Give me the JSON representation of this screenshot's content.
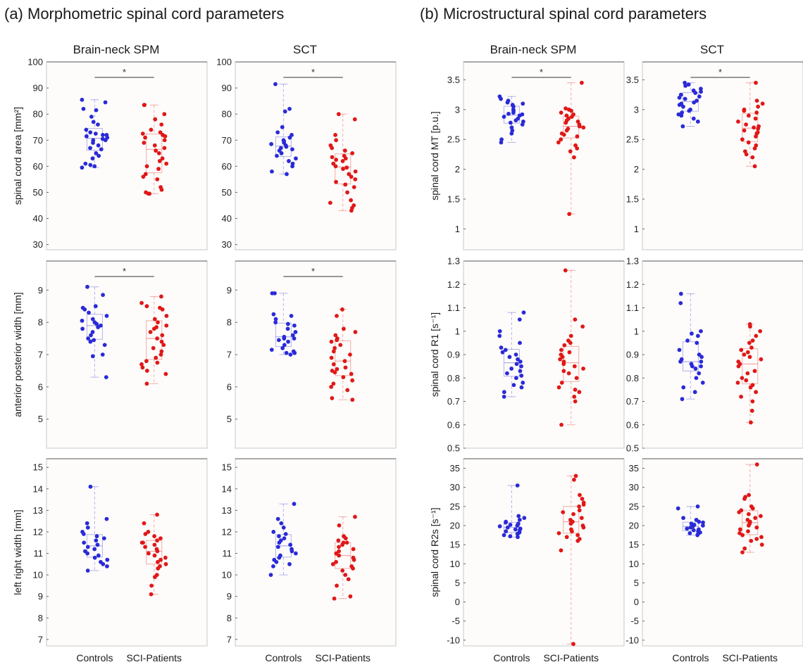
{
  "panel_a_title": "(a) Morphometric spinal cord parameters",
  "panel_b_title": "(b) Microstructural spinal cord parameters",
  "col_titles": [
    "Brain-neck SPM",
    "SCT",
    "Brain-neck SPM",
    "SCT"
  ],
  "colors": {
    "controls": "#2a2ad8",
    "patients": "#e01818"
  },
  "chart_data": [
    {
      "type": "scatter",
      "col": 0,
      "row": 0,
      "ylabel": "spinal cord area [mm²]",
      "ylim": [
        28,
        100
      ],
      "yticks": [
        30,
        40,
        50,
        60,
        70,
        80,
        90,
        100
      ],
      "yticklabels": [
        "30",
        "40",
        "50",
        "60",
        "70",
        "80",
        "90",
        "100"
      ],
      "categories": [
        "Controls",
        "SCI-Patients"
      ],
      "significance": "*",
      "series": [
        {
          "name": "Controls",
          "values": [
            85.5,
            84.5,
            82,
            81.5,
            79,
            77,
            76,
            74,
            73,
            72.5,
            72,
            72,
            71.5,
            71,
            70.5,
            70,
            70,
            69,
            68,
            67,
            66.5,
            65,
            64,
            63,
            61,
            60.5,
            60,
            59.5
          ]
        },
        {
          "name": "SCI-Patients",
          "values": [
            83.5,
            83.5,
            80,
            78,
            76,
            74,
            73,
            72.5,
            72,
            71.5,
            71,
            70,
            69,
            68,
            67,
            66,
            65,
            63,
            62,
            61,
            60,
            59,
            57,
            56,
            55,
            52,
            51,
            50,
            49.5,
            49.5
          ]
        }
      ]
    },
    {
      "type": "scatter",
      "col": 1,
      "row": 0,
      "ylabel": "",
      "ylim": [
        28,
        100
      ],
      "yticks": [
        30,
        40,
        50,
        60,
        70,
        80,
        90,
        100
      ],
      "yticklabels": [
        "30",
        "40",
        "50",
        "60",
        "70",
        "80",
        "90",
        "100"
      ],
      "categories": [
        "Controls",
        "SCI-Patients"
      ],
      "significance": "*",
      "series": [
        {
          "name": "Controls",
          "values": [
            91.5,
            82,
            81,
            75,
            73,
            72,
            71,
            70,
            69.5,
            69,
            68.5,
            68,
            67.5,
            67,
            66.5,
            66,
            65,
            64,
            63,
            62,
            61,
            60,
            58,
            57
          ]
        },
        {
          "name": "SCI-Patients",
          "values": [
            80,
            78,
            72,
            70,
            68,
            67,
            66,
            65,
            64,
            63.5,
            63,
            62.5,
            62,
            61,
            60,
            59.5,
            59,
            58,
            57,
            56,
            55,
            54,
            53,
            52,
            50,
            47,
            46,
            45,
            44,
            43
          ]
        }
      ]
    },
    {
      "type": "scatter",
      "col": 2,
      "row": 0,
      "ylabel": "spinal cord MT [p.u.]",
      "ylim": [
        0.65,
        3.8
      ],
      "yticks": [
        1,
        1.5,
        2,
        2.5,
        3,
        3.5
      ],
      "yticklabels": [
        "1",
        "1.5",
        "2",
        "2.5",
        "3",
        "3.5"
      ],
      "categories": [
        "Controls",
        "SCI-Patients"
      ],
      "significance": "*",
      "series": [
        {
          "name": "Controls",
          "values": [
            3.22,
            3.18,
            3.15,
            3.12,
            3.1,
            3.08,
            3.05,
            3.0,
            2.98,
            2.95,
            2.93,
            2.92,
            2.9,
            2.88,
            2.85,
            2.82,
            2.8,
            2.78,
            2.75,
            2.7,
            2.65,
            2.6,
            2.5,
            2.45
          ]
        },
        {
          "name": "SCI-Patients",
          "values": [
            3.45,
            3.02,
            3.0,
            2.98,
            2.95,
            2.92,
            2.9,
            2.88,
            2.85,
            2.82,
            2.8,
            2.78,
            2.75,
            2.72,
            2.7,
            2.68,
            2.65,
            2.6,
            2.58,
            2.55,
            2.5,
            2.45,
            2.4,
            2.35,
            2.3,
            2.2,
            1.25
          ]
        }
      ]
    },
    {
      "type": "scatter",
      "col": 3,
      "row": 0,
      "ylabel": "",
      "ylim": [
        0.65,
        3.8
      ],
      "yticks": [
        1,
        1.5,
        2,
        2.5,
        3,
        3.5
      ],
      "yticklabels": [
        "1",
        "1.5",
        "2",
        "2.5",
        "3",
        "3.5"
      ],
      "categories": [
        "Controls",
        "SCI-Patients"
      ],
      "significance": "*",
      "series": [
        {
          "name": "Controls",
          "values": [
            3.45,
            3.42,
            3.4,
            3.35,
            3.32,
            3.3,
            3.28,
            3.25,
            3.22,
            3.2,
            3.18,
            3.15,
            3.12,
            3.1,
            3.08,
            3.05,
            3.0,
            2.98,
            2.95,
            2.92,
            2.9,
            2.85,
            2.8,
            2.72
          ]
        },
        {
          "name": "SCI-Patients",
          "values": [
            3.45,
            3.15,
            3.1,
            3.05,
            3.0,
            2.98,
            2.95,
            2.9,
            2.85,
            2.8,
            2.75,
            2.72,
            2.7,
            2.68,
            2.65,
            2.62,
            2.6,
            2.55,
            2.5,
            2.45,
            2.4,
            2.35,
            2.3,
            2.25,
            2.2,
            2.05
          ]
        }
      ]
    },
    {
      "type": "scatter",
      "col": 0,
      "row": 1,
      "ylabel": "anterior posterior width [mm]",
      "ylim": [
        4.1,
        9.9
      ],
      "yticks": [
        5,
        6,
        7,
        8,
        9
      ],
      "yticklabels": [
        "5",
        "6",
        "7",
        "8",
        "9"
      ],
      "categories": [
        "Controls",
        "SCI-Patients"
      ],
      "significance": "*",
      "series": [
        {
          "name": "Controls",
          "values": [
            9.1,
            8.85,
            8.5,
            8.45,
            8.4,
            8.3,
            8.2,
            8.1,
            8.05,
            8.0,
            7.95,
            7.9,
            7.85,
            7.8,
            7.7,
            7.6,
            7.5,
            7.45,
            7.4,
            7.3,
            7.0,
            6.95,
            6.3
          ]
        },
        {
          "name": "SCI-Patients",
          "values": [
            8.8,
            8.6,
            8.5,
            8.45,
            8.4,
            8.2,
            8.1,
            8.0,
            7.9,
            7.85,
            7.8,
            7.7,
            7.6,
            7.5,
            7.4,
            7.3,
            7.2,
            7.1,
            7.0,
            6.9,
            6.8,
            6.75,
            6.7,
            6.6,
            6.5,
            6.4,
            6.1
          ]
        }
      ]
    },
    {
      "type": "scatter",
      "col": 1,
      "row": 1,
      "ylabel": "",
      "ylim": [
        4.1,
        9.9
      ],
      "yticks": [
        5,
        6,
        7,
        8,
        9
      ],
      "yticklabels": [
        "5",
        "6",
        "7",
        "8",
        "9"
      ],
      "categories": [
        "Controls",
        "SCI-Patients"
      ],
      "significance": "*",
      "series": [
        {
          "name": "Controls",
          "values": [
            8.9,
            8.9,
            8.25,
            8.2,
            8.1,
            8.0,
            7.95,
            7.9,
            7.8,
            7.7,
            7.6,
            7.55,
            7.5,
            7.5,
            7.45,
            7.4,
            7.3,
            7.2,
            7.15,
            7.1,
            7.05,
            7.05,
            7.0
          ]
        },
        {
          "name": "SCI-Patients",
          "values": [
            8.4,
            8.2,
            7.8,
            7.7,
            7.6,
            7.5,
            7.45,
            7.4,
            7.3,
            7.2,
            7.1,
            7.0,
            6.9,
            6.8,
            6.7,
            6.6,
            6.55,
            6.5,
            6.45,
            6.4,
            6.3,
            6.2,
            6.1,
            6.0,
            5.9,
            5.65,
            5.6
          ]
        }
      ]
    },
    {
      "type": "scatter",
      "col": 2,
      "row": 1,
      "ylabel": "spinal cord R1 [s⁻¹]",
      "ylim": [
        0.5,
        1.3
      ],
      "yticks": [
        0.5,
        0.6,
        0.7,
        0.8,
        0.9,
        1,
        1.1,
        1.2,
        1.3
      ],
      "yticklabels": [
        "0.5",
        "0.6",
        "0.7",
        "0.8",
        "0.9",
        "1",
        "1.1",
        "1.2",
        "1.3"
      ],
      "categories": [
        "Controls",
        "SCI-Patients"
      ],
      "significance": "",
      "series": [
        {
          "name": "Controls",
          "values": [
            1.08,
            1.05,
            1.0,
            0.98,
            0.95,
            0.93,
            0.92,
            0.91,
            0.9,
            0.89,
            0.88,
            0.87,
            0.86,
            0.85,
            0.84,
            0.83,
            0.82,
            0.81,
            0.8,
            0.78,
            0.77,
            0.76,
            0.74,
            0.72
          ]
        },
        {
          "name": "SCI-Patients",
          "values": [
            1.26,
            1.05,
            1.02,
            0.98,
            0.96,
            0.95,
            0.94,
            0.92,
            0.91,
            0.9,
            0.89,
            0.88,
            0.87,
            0.86,
            0.85,
            0.84,
            0.83,
            0.82,
            0.8,
            0.78,
            0.76,
            0.75,
            0.74,
            0.72,
            0.7,
            0.6
          ]
        }
      ]
    },
    {
      "type": "scatter",
      "col": 3,
      "row": 1,
      "ylabel": "",
      "ylim": [
        0.5,
        1.3
      ],
      "yticks": [
        0.5,
        0.6,
        0.7,
        0.8,
        0.9,
        1,
        1.1,
        1.2,
        1.3
      ],
      "yticklabels": [
        "0.5",
        "0.6",
        "0.7",
        "0.8",
        "0.9",
        "1",
        "1.1",
        "1.2",
        "1.3"
      ],
      "categories": [
        "Controls",
        "SCI-Patients"
      ],
      "significance": "",
      "series": [
        {
          "name": "Controls",
          "values": [
            1.16,
            1.12,
            1.0,
            0.99,
            0.98,
            0.96,
            0.95,
            0.92,
            0.9,
            0.89,
            0.88,
            0.87,
            0.87,
            0.86,
            0.85,
            0.85,
            0.84,
            0.82,
            0.8,
            0.78,
            0.76,
            0.74,
            0.71
          ]
        },
        {
          "name": "SCI-Patients",
          "values": [
            1.03,
            1.02,
            1.0,
            0.98,
            0.96,
            0.95,
            0.93,
            0.92,
            0.91,
            0.9,
            0.89,
            0.88,
            0.87,
            0.86,
            0.85,
            0.83,
            0.82,
            0.8,
            0.79,
            0.78,
            0.77,
            0.76,
            0.74,
            0.72,
            0.7,
            0.66,
            0.61
          ]
        }
      ]
    },
    {
      "type": "scatter",
      "col": 0,
      "row": 2,
      "ylabel": "left right width [mm]",
      "ylim": [
        6.7,
        15.4
      ],
      "yticks": [
        7,
        8,
        9,
        10,
        11,
        12,
        13,
        14,
        15
      ],
      "yticklabels": [
        "7",
        "8",
        "9",
        "10",
        "11",
        "12",
        "13",
        "14",
        "15"
      ],
      "categories": [
        "Controls",
        "SCI-Patients"
      ],
      "significance": "",
      "series": [
        {
          "name": "Controls",
          "values": [
            14.1,
            12.6,
            12.4,
            12.2,
            12.0,
            11.9,
            11.8,
            11.7,
            11.6,
            11.5,
            11.4,
            11.3,
            11.2,
            11.1,
            11.0,
            10.9,
            10.8,
            10.7,
            10.6,
            10.5,
            10.4,
            10.2
          ]
        },
        {
          "name": "SCI-Patients",
          "values": [
            12.8,
            12.4,
            12.0,
            11.9,
            11.8,
            11.7,
            11.6,
            11.5,
            11.5,
            11.4,
            11.3,
            11.2,
            11.1,
            11.0,
            10.9,
            10.8,
            10.7,
            10.6,
            10.5,
            10.4,
            10.3,
            10.0,
            9.9,
            9.5,
            9.1
          ]
        }
      ]
    },
    {
      "type": "scatter",
      "col": 1,
      "row": 2,
      "ylabel": "",
      "ylim": [
        6.7,
        15.4
      ],
      "yticks": [
        7,
        8,
        9,
        10,
        11,
        12,
        13,
        14,
        15
      ],
      "yticklabels": [
        "7",
        "8",
        "9",
        "10",
        "11",
        "12",
        "13",
        "14",
        "15"
      ],
      "categories": [
        "Controls",
        "SCI-Patients"
      ],
      "significance": "",
      "series": [
        {
          "name": "Controls",
          "values": [
            13.3,
            12.6,
            12.4,
            12.2,
            12.0,
            11.9,
            11.8,
            11.7,
            11.6,
            11.5,
            11.4,
            11.3,
            11.2,
            11.1,
            11.0,
            10.9,
            10.8,
            10.7,
            10.6,
            10.5,
            10.4,
            10.0
          ]
        },
        {
          "name": "SCI-Patients",
          "values": [
            12.7,
            12.3,
            11.8,
            11.7,
            11.6,
            11.5,
            11.5,
            11.4,
            11.3,
            11.2,
            11.1,
            11.0,
            10.9,
            10.8,
            10.7,
            10.6,
            10.5,
            10.4,
            10.3,
            10.2,
            10.0,
            9.8,
            9.5,
            9.0,
            8.9
          ]
        }
      ]
    },
    {
      "type": "scatter",
      "col": 2,
      "row": 2,
      "ylabel": "spinal cord R2s [s⁻¹]",
      "ylim": [
        -11.5,
        37.5
      ],
      "yticks": [
        -10,
        -5,
        0,
        5,
        10,
        15,
        20,
        25,
        30,
        35
      ],
      "yticklabels": [
        "-10",
        "-5",
        "0",
        "5",
        "10",
        "15",
        "20",
        "25",
        "30",
        "35"
      ],
      "categories": [
        "Controls",
        "SCI-Patients"
      ],
      "significance": "",
      "series": [
        {
          "name": "Controls",
          "values": [
            30.5,
            22.5,
            22,
            21.5,
            21,
            20.8,
            20.5,
            20.2,
            20,
            19.8,
            19.5,
            19.2,
            19,
            18.8,
            18.5,
            18.2,
            18,
            17.8,
            17.5,
            17.2,
            17
          ]
        },
        {
          "name": "SCI-Patients",
          "values": [
            33,
            32,
            28,
            27,
            26,
            25.5,
            25,
            24,
            23.5,
            23,
            22,
            21.5,
            21,
            20.5,
            20,
            19.5,
            19,
            18.5,
            18,
            17.5,
            17,
            16.5,
            16,
            13.5,
            -11
          ]
        }
      ]
    },
    {
      "type": "scatter",
      "col": 3,
      "row": 2,
      "ylabel": "",
      "ylim": [
        -11.5,
        37.5
      ],
      "yticks": [
        -10,
        -5,
        0,
        5,
        10,
        15,
        20,
        25,
        30,
        35
      ],
      "yticklabels": [
        "-10",
        "-5",
        "0",
        "5",
        "10",
        "15",
        "20",
        "25",
        "30",
        "35"
      ],
      "categories": [
        "Controls",
        "SCI-Patients"
      ],
      "significance": "",
      "series": [
        {
          "name": "Controls",
          "values": [
            25,
            24.5,
            22,
            21.5,
            21,
            20.8,
            20.5,
            20.2,
            20,
            19.8,
            19.5,
            19.2,
            19,
            18.8,
            18.5,
            18.2,
            18,
            17.8,
            17.5
          ]
        },
        {
          "name": "SCI-Patients",
          "values": [
            36,
            28,
            27.5,
            27,
            25,
            24.5,
            24,
            23.5,
            23,
            22.5,
            22,
            21.5,
            21,
            20.5,
            20,
            19.5,
            19,
            18.5,
            18,
            17.5,
            17,
            16.5,
            16,
            15,
            14,
            13
          ]
        }
      ]
    }
  ]
}
